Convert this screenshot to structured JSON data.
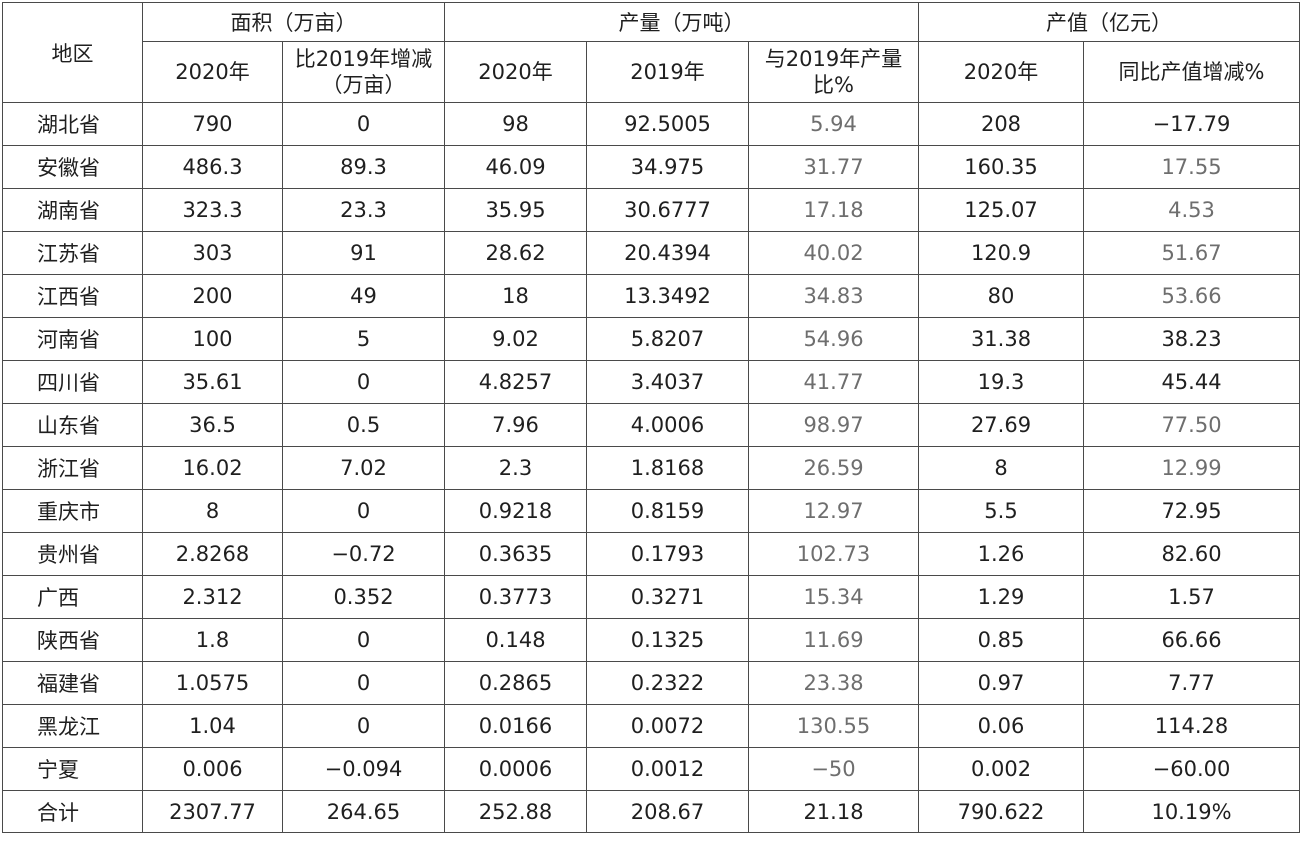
{
  "header": {
    "region": "地区",
    "area": "面积（万亩）",
    "output": "产量（万吨）",
    "value": "产值（亿元）",
    "area_2020": "2020年",
    "area_change": "比2019年增减（万亩）",
    "output_2020": "2020年",
    "output_2019": "2019年",
    "output_ratio": "与2019年产量比%",
    "value_2020": "2020年",
    "value_change": "同比产值增减%"
  },
  "rows": [
    {
      "region": "湖北省",
      "area_2020": "790",
      "area_change": "0",
      "output_2020": "98",
      "output_2019": "92.5005",
      "output_ratio": "5.94",
      "value_2020": "208",
      "value_change": "−17.79"
    },
    {
      "region": "安徽省",
      "area_2020": "486.3",
      "area_change": "89.3",
      "output_2020": "46.09",
      "output_2019": "34.975",
      "output_ratio": "31.77",
      "value_2020": "160.35",
      "value_change": "17.55"
    },
    {
      "region": "湖南省",
      "area_2020": "323.3",
      "area_change": "23.3",
      "output_2020": "35.95",
      "output_2019": "30.6777",
      "output_ratio": "17.18",
      "value_2020": "125.07",
      "value_change": "4.53"
    },
    {
      "region": "江苏省",
      "area_2020": "303",
      "area_change": "91",
      "output_2020": "28.62",
      "output_2019": "20.4394",
      "output_ratio": "40.02",
      "value_2020": "120.9",
      "value_change": "51.67"
    },
    {
      "region": "江西省",
      "area_2020": "200",
      "area_change": "49",
      "output_2020": "18",
      "output_2019": "13.3492",
      "output_ratio": "34.83",
      "value_2020": "80",
      "value_change": "53.66"
    },
    {
      "region": "河南省",
      "area_2020": "100",
      "area_change": "5",
      "output_2020": "9.02",
      "output_2019": "5.8207",
      "output_ratio": "54.96",
      "value_2020": "31.38",
      "value_change": "38.23"
    },
    {
      "region": "四川省",
      "area_2020": "35.61",
      "area_change": "0",
      "output_2020": "4.8257",
      "output_2019": "3.4037",
      "output_ratio": "41.77",
      "value_2020": "19.3",
      "value_change": "45.44"
    },
    {
      "region": "山东省",
      "area_2020": "36.5",
      "area_change": "0.5",
      "output_2020": "7.96",
      "output_2019": "4.0006",
      "output_ratio": "98.97",
      "value_2020": "27.69",
      "value_change": "77.50"
    },
    {
      "region": "浙江省",
      "area_2020": "16.02",
      "area_change": "7.02",
      "output_2020": "2.3",
      "output_2019": "1.8168",
      "output_ratio": "26.59",
      "value_2020": "8",
      "value_change": "12.99"
    },
    {
      "region": "重庆市",
      "area_2020": "8",
      "area_change": "0",
      "output_2020": "0.9218",
      "output_2019": "0.8159",
      "output_ratio": "12.97",
      "value_2020": "5.5",
      "value_change": "72.95"
    },
    {
      "region": "贵州省",
      "area_2020": "2.8268",
      "area_change": "−0.72",
      "output_2020": "0.3635",
      "output_2019": "0.1793",
      "output_ratio": "102.73",
      "value_2020": "1.26",
      "value_change": "82.60"
    },
    {
      "region": "广西",
      "area_2020": "2.312",
      "area_change": "0.352",
      "output_2020": "0.3773",
      "output_2019": "0.3271",
      "output_ratio": "15.34",
      "value_2020": "1.29",
      "value_change": "1.57"
    },
    {
      "region": "陕西省",
      "area_2020": "1.8",
      "area_change": "0",
      "output_2020": "0.148",
      "output_2019": "0.1325",
      "output_ratio": "11.69",
      "value_2020": "0.85",
      "value_change": "66.66"
    },
    {
      "region": "福建省",
      "area_2020": "1.0575",
      "area_change": "0",
      "output_2020": "0.2865",
      "output_2019": "0.2322",
      "output_ratio": "23.38",
      "value_2020": "0.97",
      "value_change": "7.77"
    },
    {
      "region": "黑龙江",
      "area_2020": "1.04",
      "area_change": "0",
      "output_2020": "0.0166",
      "output_2019": "0.0072",
      "output_ratio": "130.55",
      "value_2020": "0.06",
      "value_change": "114.28"
    },
    {
      "region": "宁夏",
      "area_2020": "0.006",
      "area_change": "−0.094",
      "output_2020": "0.0006",
      "output_2019": "0.0012",
      "output_ratio": "−50",
      "value_2020": "0.002",
      "value_change": "−60.00"
    }
  ],
  "total": {
    "region": "合计",
    "area_2020": "2307.77",
    "area_change": "264.65",
    "output_2020": "252.88",
    "output_2019": "208.67",
    "output_ratio": "21.18",
    "value_2020": "790.622",
    "value_change": "10.19%"
  }
}
